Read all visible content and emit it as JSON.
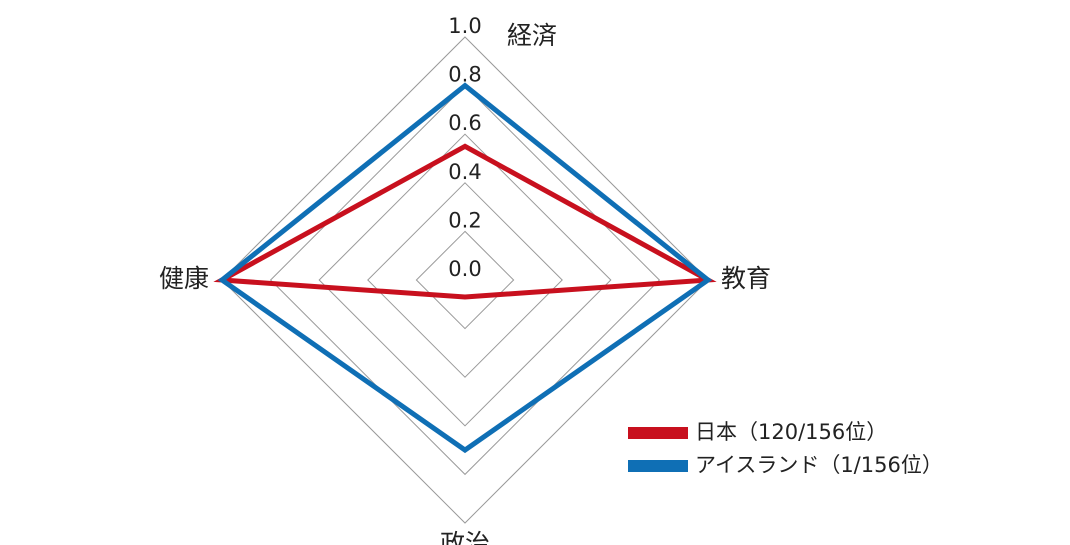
{
  "chart_data": {
    "type": "radar",
    "categories": [
      "経済",
      "教育",
      "政治",
      "健康"
    ],
    "ylim": [
      0,
      1.0
    ],
    "yticks": [
      {
        "value": 0,
        "label": "0.0"
      },
      0.2,
      0.4,
      0.6,
      0.8,
      {
        "value": 1,
        "label": "1.0"
      }
    ],
    "grid": true,
    "legend": "lower right",
    "series": [
      {
        "name": "日本（120/156位）",
        "color": "#c8101e",
        "values": [
          0.55,
          1.0,
          0.07,
          1.0
        ]
      },
      {
        "name": "アイスランド（1/156位）",
        "color": "#0f6fb5",
        "values": [
          0.8,
          1.0,
          0.7,
          1.0
        ]
      }
    ]
  }
}
